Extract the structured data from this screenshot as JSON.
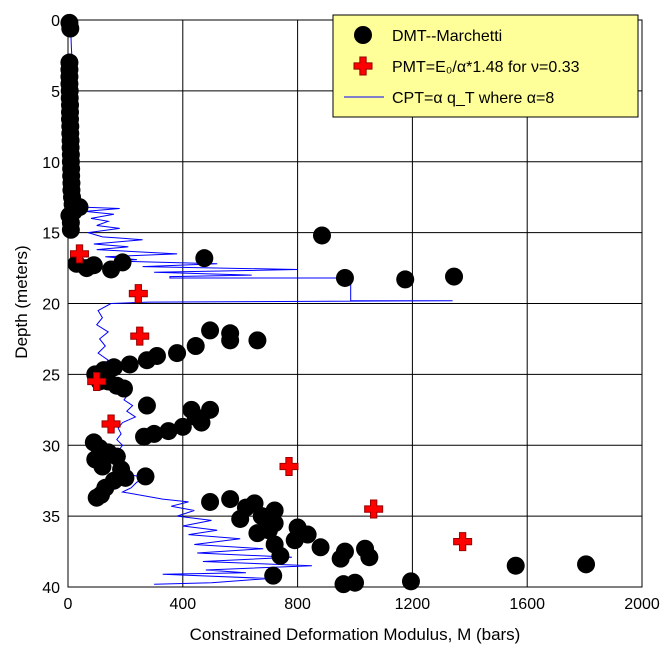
{
  "chart_data": {
    "type": "scatter",
    "xlabel": "Constrained Deformation Modulus, M (bars)",
    "ylabel": "Depth (meters)",
    "xlim": [
      0,
      2000
    ],
    "ylim": [
      0,
      40
    ],
    "y_inverted": true,
    "x_ticks": [
      0,
      400,
      800,
      1200,
      1600,
      2000
    ],
    "y_ticks": [
      0,
      5,
      10,
      15,
      20,
      25,
      30,
      35,
      40
    ],
    "grid": true,
    "legend_position": "top-right",
    "legend_background": "#FFFF99",
    "series": [
      {
        "name": "DMT--Marchetti",
        "marker": "circle",
        "color": "#000000",
        "points": [
          [
            5,
            0.2
          ],
          [
            8,
            0.6
          ],
          [
            5,
            3
          ],
          [
            5,
            3.5
          ],
          [
            5,
            4
          ],
          [
            5,
            4.5
          ],
          [
            6,
            5
          ],
          [
            6,
            5.5
          ],
          [
            7,
            6
          ],
          [
            7,
            6.5
          ],
          [
            7,
            7
          ],
          [
            8,
            7.5
          ],
          [
            8,
            8
          ],
          [
            9,
            8.5
          ],
          [
            9,
            9
          ],
          [
            10,
            9.5
          ],
          [
            10,
            10
          ],
          [
            11,
            10.5
          ],
          [
            11,
            11
          ],
          [
            12,
            11.5
          ],
          [
            12,
            12
          ],
          [
            14,
            12.5
          ],
          [
            16,
            13
          ],
          [
            20,
            13.5
          ],
          [
            40,
            13.2
          ],
          [
            5,
            13.8
          ],
          [
            10,
            14.3
          ],
          [
            10,
            14.8
          ],
          [
            30,
            17.2
          ],
          [
            65,
            17.5
          ],
          [
            90,
            17.3
          ],
          [
            150,
            17.6
          ],
          [
            190,
            17.1
          ],
          [
            475,
            16.8
          ],
          [
            885,
            15.2
          ],
          [
            965,
            18.2
          ],
          [
            1175,
            18.3
          ],
          [
            1345,
            18.1
          ],
          [
            495,
            21.9
          ],
          [
            565,
            22.1
          ],
          [
            565,
            22.6
          ],
          [
            660,
            22.6
          ],
          [
            445,
            23
          ],
          [
            380,
            23.5
          ],
          [
            310,
            23.7
          ],
          [
            275,
            24
          ],
          [
            215,
            24.3
          ],
          [
            160,
            24.5
          ],
          [
            125,
            24.7
          ],
          [
            95,
            25
          ],
          [
            110,
            25.5
          ],
          [
            140,
            25.5
          ],
          [
            170,
            25.8
          ],
          [
            195,
            26
          ],
          [
            275,
            27.2
          ],
          [
            430,
            27.5
          ],
          [
            445,
            28
          ],
          [
            465,
            28.4
          ],
          [
            495,
            27.5
          ],
          [
            400,
            28.7
          ],
          [
            350,
            29
          ],
          [
            300,
            29.2
          ],
          [
            265,
            29.4
          ],
          [
            90,
            29.8
          ],
          [
            110,
            30.2
          ],
          [
            140,
            30.5
          ],
          [
            170,
            30.8
          ],
          [
            95,
            31
          ],
          [
            120,
            31.5
          ],
          [
            185,
            31.7
          ],
          [
            200,
            32.3
          ],
          [
            160,
            32.5
          ],
          [
            270,
            32.2
          ],
          [
            130,
            33
          ],
          [
            115,
            33.5
          ],
          [
            100,
            33.7
          ],
          [
            495,
            34
          ],
          [
            565,
            33.8
          ],
          [
            650,
            34.1
          ],
          [
            720,
            34.6
          ],
          [
            620,
            34.4
          ],
          [
            675,
            35
          ],
          [
            600,
            35.2
          ],
          [
            720,
            35.5
          ],
          [
            700,
            36
          ],
          [
            660,
            36.2
          ],
          [
            800,
            35.8
          ],
          [
            835,
            36.3
          ],
          [
            790,
            36.7
          ],
          [
            720,
            37
          ],
          [
            880,
            37.2
          ],
          [
            965,
            37.5
          ],
          [
            1035,
            37.3
          ],
          [
            740,
            37.8
          ],
          [
            950,
            38
          ],
          [
            1050,
            37.9
          ],
          [
            1560,
            38.5
          ],
          [
            1805,
            38.4
          ],
          [
            715,
            39.2
          ],
          [
            960,
            39.8
          ],
          [
            1000,
            39.7
          ],
          [
            1195,
            39.6
          ]
        ]
      },
      {
        "name": "PMT=E₀/α*1.48 for ν=0.33",
        "marker": "cross",
        "color": "#FF0000",
        "points": [
          [
            40,
            16.5
          ],
          [
            245,
            19.3
          ],
          [
            250,
            22.3
          ],
          [
            100,
            25.5
          ],
          [
            150,
            28.5
          ],
          [
            770,
            31.5
          ],
          [
            1065,
            34.5
          ],
          [
            1375,
            36.8
          ]
        ]
      },
      {
        "name": "CPT=α q_T where α=8",
        "marker": "line",
        "color": "#0000FF",
        "points": [
          [
            2,
            0
          ],
          [
            10,
            1
          ],
          [
            12,
            2
          ],
          [
            15,
            3
          ],
          [
            18,
            4
          ],
          [
            20,
            5
          ],
          [
            22,
            6
          ],
          [
            20,
            7
          ],
          [
            22,
            8
          ],
          [
            25,
            9
          ],
          [
            28,
            10
          ],
          [
            30,
            11
          ],
          [
            35,
            12
          ],
          [
            40,
            13
          ],
          [
            50,
            13.2
          ],
          [
            180,
            13.3
          ],
          [
            60,
            13.5
          ],
          [
            160,
            13.7
          ],
          [
            80,
            14
          ],
          [
            140,
            14.2
          ],
          [
            100,
            14.5
          ],
          [
            180,
            14.7
          ],
          [
            70,
            15
          ],
          [
            120,
            15.3
          ],
          [
            260,
            15.5
          ],
          [
            90,
            15.8
          ],
          [
            210,
            16
          ],
          [
            100,
            16.2
          ],
          [
            380,
            16.5
          ],
          [
            130,
            16.7
          ],
          [
            240,
            16.9
          ],
          [
            160,
            17
          ],
          [
            520,
            17.2
          ],
          [
            260,
            17.4
          ],
          [
            800,
            17.6
          ],
          [
            300,
            17.8
          ],
          [
            640,
            18
          ],
          [
            355,
            18.1
          ],
          [
            355,
            18.2
          ],
          [
            985,
            18.2
          ],
          [
            985,
            19.8
          ],
          [
            1340,
            19.8
          ],
          [
            280,
            19.9
          ],
          [
            150,
            20
          ],
          [
            105,
            20.5
          ],
          [
            120,
            21
          ],
          [
            100,
            21.5
          ],
          [
            140,
            22
          ],
          [
            110,
            22.5
          ],
          [
            130,
            23
          ],
          [
            105,
            23.5
          ],
          [
            140,
            24
          ],
          [
            115,
            24.5
          ],
          [
            150,
            25
          ],
          [
            170,
            25.3
          ],
          [
            200,
            25.6
          ],
          [
            185,
            26
          ],
          [
            210,
            26.4
          ],
          [
            195,
            26.8
          ],
          [
            225,
            27.2
          ],
          [
            205,
            27.6
          ],
          [
            235,
            28
          ],
          [
            190,
            28.4
          ],
          [
            175,
            28.8
          ],
          [
            185,
            29.2
          ],
          [
            170,
            29.6
          ],
          [
            190,
            30
          ],
          [
            175,
            30.4
          ],
          [
            200,
            30.8
          ],
          [
            185,
            31.2
          ],
          [
            210,
            31.6
          ],
          [
            190,
            32
          ],
          [
            280,
            32.3
          ],
          [
            240,
            32.6
          ],
          [
            220,
            33
          ],
          [
            190,
            33.3
          ],
          [
            330,
            33.8
          ],
          [
            420,
            34
          ],
          [
            360,
            34.3
          ],
          [
            440,
            34.6
          ],
          [
            380,
            35
          ],
          [
            500,
            35.3
          ],
          [
            400,
            35.7
          ],
          [
            520,
            36
          ],
          [
            420,
            36.3
          ],
          [
            600,
            36.6
          ],
          [
            440,
            37
          ],
          [
            680,
            37.3
          ],
          [
            450,
            37.6
          ],
          [
            780,
            37.9
          ],
          [
            470,
            38.2
          ],
          [
            850,
            38.5
          ],
          [
            480,
            38.8
          ],
          [
            620,
            39
          ],
          [
            330,
            39.1
          ],
          [
            700,
            39.4
          ],
          [
            500,
            39.7
          ],
          [
            300,
            39.8
          ]
        ]
      }
    ]
  }
}
